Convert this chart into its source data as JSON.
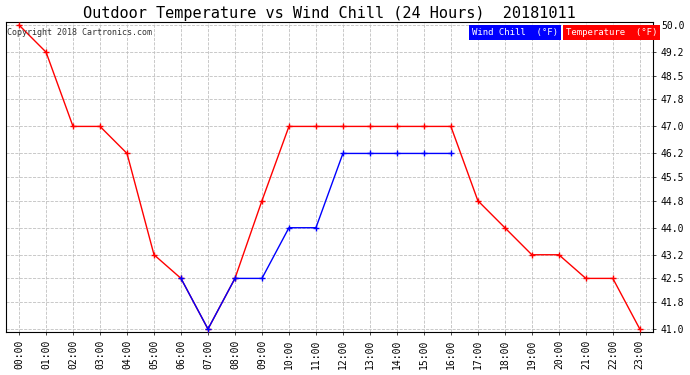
{
  "title": "Outdoor Temperature vs Wind Chill (24 Hours)  20181011",
  "copyright": "Copyright 2018 Cartronics.com",
  "ylim": [
    41.0,
    50.0
  ],
  "yticks": [
    41.0,
    41.8,
    42.5,
    43.2,
    44.0,
    44.8,
    45.5,
    46.2,
    47.0,
    47.8,
    48.5,
    49.2,
    50.0
  ],
  "hours": [
    "00:00",
    "01:00",
    "02:00",
    "03:00",
    "04:00",
    "05:00",
    "06:00",
    "07:00",
    "08:00",
    "09:00",
    "10:00",
    "11:00",
    "12:00",
    "13:00",
    "14:00",
    "15:00",
    "16:00",
    "17:00",
    "18:00",
    "19:00",
    "20:00",
    "21:00",
    "22:00",
    "23:00"
  ],
  "temperature": [
    50.0,
    49.2,
    47.0,
    47.0,
    46.2,
    43.2,
    42.5,
    41.0,
    42.5,
    44.8,
    47.0,
    47.0,
    47.0,
    47.0,
    47.0,
    47.0,
    47.0,
    44.8,
    44.0,
    43.2,
    43.2,
    42.5,
    42.5,
    41.0
  ],
  "wind_chill": [
    null,
    null,
    null,
    null,
    null,
    null,
    42.5,
    41.0,
    42.5,
    42.5,
    44.0,
    44.0,
    46.2,
    46.2,
    46.2,
    46.2,
    46.2,
    null,
    null,
    null,
    null,
    null,
    null,
    null
  ],
  "temp_color": "#ff0000",
  "wind_color": "#0000ff",
  "bg_color": "#ffffff",
  "grid_color": "#c0c0c0",
  "title_fontsize": 11,
  "tick_fontsize": 7,
  "copyright_fontsize": 6,
  "legend_wind_bg": "#0000ff",
  "legend_temp_bg": "#ff0000",
  "legend_text_color": "#ffffff"
}
